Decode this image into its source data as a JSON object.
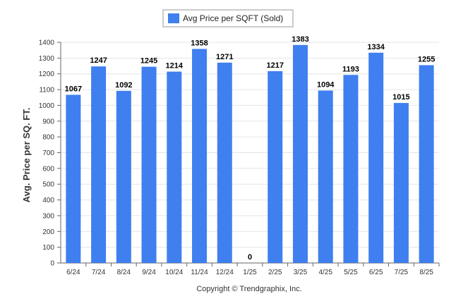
{
  "chart_data": {
    "type": "bar",
    "categories": [
      "6/24",
      "7/24",
      "8/24",
      "9/24",
      "10/24",
      "11/24",
      "12/24",
      "1/25",
      "2/25",
      "3/25",
      "4/25",
      "5/25",
      "6/25",
      "7/25",
      "8/25"
    ],
    "series": [
      {
        "name": "Avg Price per SQFT (Sold)",
        "values": [
          1067,
          1247,
          1092,
          1245,
          1214,
          1358,
          1271,
          0,
          1217,
          1383,
          1094,
          1193,
          1334,
          1015,
          1255
        ]
      }
    ],
    "data_labels": [
      "1067",
      "1247",
      "1092",
      "1245",
      "1214",
      "1358",
      "1271",
      "0",
      "1217",
      "1383",
      "1094",
      "1193",
      "1334",
      "1015",
      "1255"
    ],
    "ylabel": "Avg. Price per SQ. FT.",
    "xlabel": "",
    "ylim": [
      0,
      1400
    ],
    "yticks": [
      "0",
      "100",
      "200",
      "300",
      "400",
      "500",
      "600",
      "700",
      "800",
      "900",
      "1000",
      "1100",
      "1200",
      "1300",
      "1400"
    ],
    "grid": true,
    "legend_position": "top-center",
    "bar_color": "#3f7ff0",
    "credit": "Copyright © Trendgraphix, Inc."
  }
}
